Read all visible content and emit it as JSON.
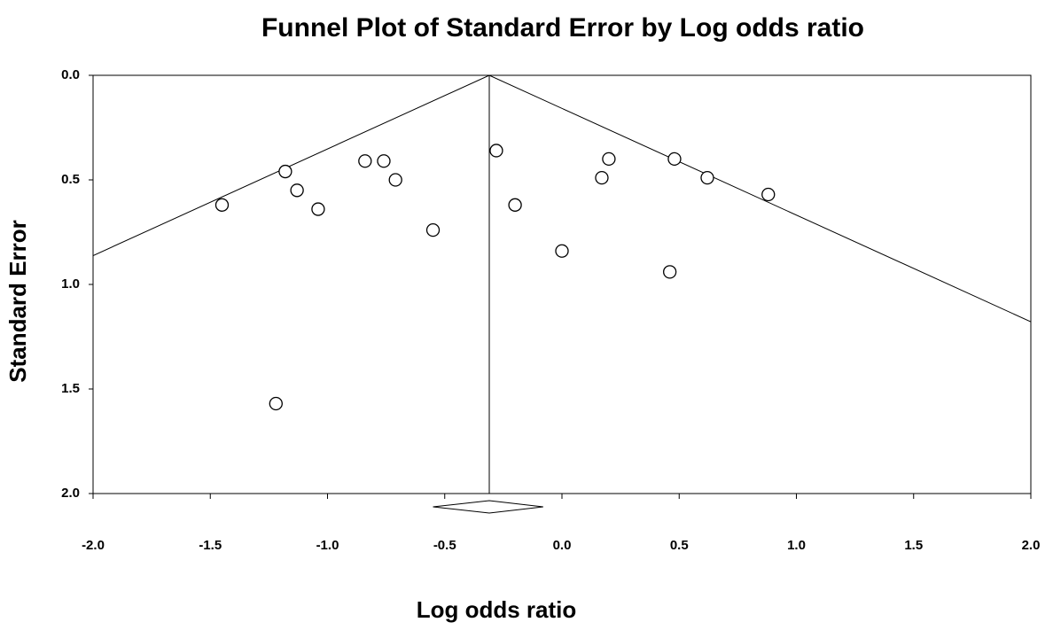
{
  "chart_data": {
    "type": "funnel",
    "title": "Funnel Plot of Standard Error by Log odds ratio",
    "x_label": "Log odds ratio",
    "y_label": "Standard Error",
    "xlim": [
      -2,
      2
    ],
    "ylim": [
      0,
      2
    ],
    "y_inverted": true,
    "xticks": [
      {
        "value": -2,
        "label": "-2.0"
      },
      {
        "value": -1.5,
        "label": "-1.5"
      },
      {
        "value": -1,
        "label": "-1.0"
      },
      {
        "value": -0.5,
        "label": "-0.5"
      },
      {
        "value": 0,
        "label": "0.0"
      },
      {
        "value": 0.5,
        "label": "0.5"
      },
      {
        "value": 1,
        "label": "1.0"
      },
      {
        "value": 1.5,
        "label": "1.5"
      },
      {
        "value": 2,
        "label": "2.0"
      }
    ],
    "yticks": [
      {
        "value": 0,
        "label": "0.0"
      },
      {
        "value": 0.5,
        "label": "0.5"
      },
      {
        "value": 1,
        "label": "1.0"
      },
      {
        "value": 1.5,
        "label": "1.5"
      },
      {
        "value": 2,
        "label": "2.0"
      }
    ],
    "x": [
      -1.45,
      -1.18,
      -1.13,
      -1.04,
      -0.84,
      -0.76,
      -0.71,
      -0.55,
      -1.22,
      -0.28,
      -0.2,
      0,
      0.17,
      0.2,
      0.48,
      0.46,
      0.62,
      0.88
    ],
    "y": [
      0.62,
      0.46,
      0.55,
      0.64,
      0.41,
      0.41,
      0.5,
      0.74,
      1.57,
      0.36,
      0.62,
      0.84,
      0.49,
      0.4,
      0.4,
      0.94,
      0.49,
      0.57
    ],
    "pooled_estimate": -0.31,
    "funnel_z": 1.96,
    "diamond": {
      "lower": -0.55,
      "upper": -0.08
    },
    "marker_color": "#000000"
  }
}
